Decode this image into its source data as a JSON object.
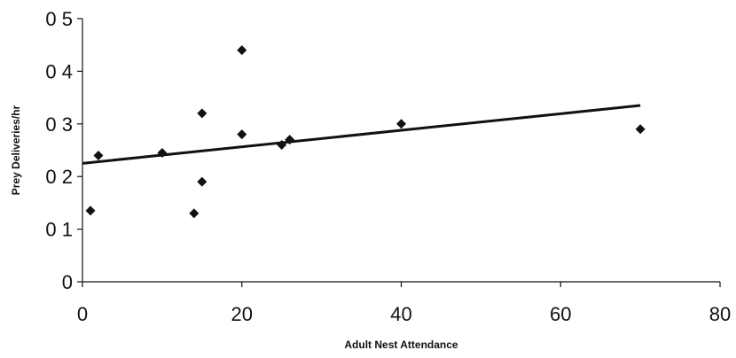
{
  "chart_data": {
    "type": "scatter",
    "title": "",
    "xlabel": "Adult Nest Attendance",
    "ylabel": "Prey Deliveries/hr",
    "xlim": [
      0,
      80
    ],
    "ylim": [
      0,
      0.5
    ],
    "xticks": [
      0,
      20,
      40,
      60,
      80
    ],
    "yticks": [
      0,
      0.1,
      0.2,
      0.3,
      0.4,
      0.5
    ],
    "xtick_labels": [
      "0",
      "20",
      "40",
      "60",
      "80"
    ],
    "ytick_labels": [
      "0",
      "0 1",
      "0 2",
      "0 3",
      "0 4",
      "0 5"
    ],
    "grid": false,
    "legend": "none",
    "marker": "diamond",
    "color": "#111111",
    "series": [
      {
        "points": [
          {
            "x": 1,
            "y": 0.135
          },
          {
            "x": 2,
            "y": 0.24
          },
          {
            "x": 10,
            "y": 0.245
          },
          {
            "x": 14,
            "y": 0.13
          },
          {
            "x": 15,
            "y": 0.32
          },
          {
            "x": 15,
            "y": 0.19
          },
          {
            "x": 20,
            "y": 0.44
          },
          {
            "x": 20,
            "y": 0.28
          },
          {
            "x": 25,
            "y": 0.26
          },
          {
            "x": 26,
            "y": 0.27
          },
          {
            "x": 40,
            "y": 0.3
          },
          {
            "x": 70,
            "y": 0.29
          }
        ]
      }
    ],
    "trendline": {
      "type": "linear",
      "x": [
        0,
        70
      ],
      "y": [
        0.225,
        0.335
      ]
    }
  }
}
